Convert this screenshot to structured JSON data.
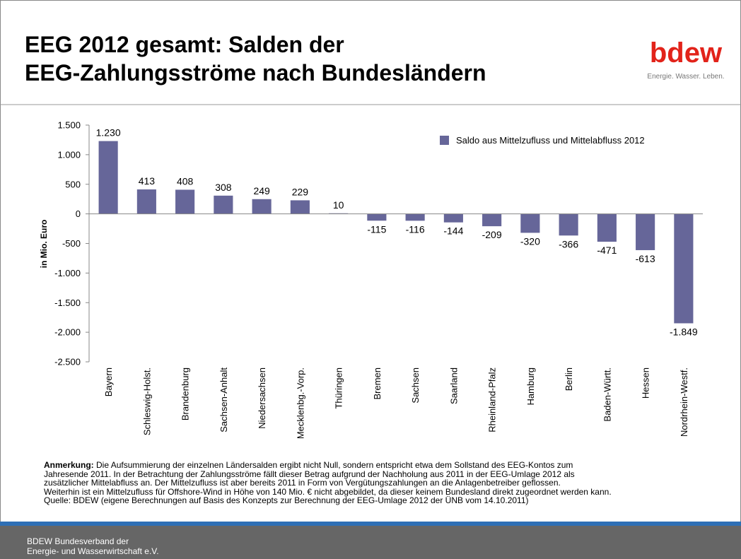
{
  "header": {
    "title": [
      "EEG 2012 gesamt: Salden der",
      "EEG-Zahlungsströme nach Bundesländern"
    ]
  },
  "logo": {
    "name": "bdew",
    "tagline": "Energie. Wasser. Leben."
  },
  "chart_data": {
    "type": "bar",
    "ylabel": "in Mio. Euro",
    "categories": [
      "Bayern",
      "Schleswig-Holst.",
      "Brandenburg",
      "Sachsen-Anhalt",
      "Niedersachsen",
      "Mecklenbg.-Vorp.",
      "Thüringen",
      "Bremen",
      "Sachsen",
      "Saarland",
      "Rheinland-Pfalz",
      "Hamburg",
      "Berlin",
      "Baden-Württ.",
      "Hessen",
      "Nordrhein-Westf."
    ],
    "series": [
      {
        "name": "Saldo aus Mittelzufluss und Mittelabfluss 2012",
        "color": "#666699",
        "values": [
          1230,
          413,
          408,
          308,
          249,
          229,
          10,
          -115,
          -116,
          -144,
          -209,
          -320,
          -366,
          -471,
          -613,
          -1849
        ],
        "value_labels": [
          "1.230",
          "413",
          "408",
          "308",
          "249",
          "229",
          "10",
          "-115",
          "-116",
          "-144",
          "-209",
          "-320",
          "-366",
          "-471",
          "-613",
          "-1.849"
        ]
      }
    ],
    "ylim": [
      -2500,
      1500
    ],
    "yticks": [
      {
        "value": -2500,
        "label": "-2.500"
      },
      {
        "value": -2000,
        "label": "-2.000"
      },
      {
        "value": -1500,
        "label": "-1.500"
      },
      {
        "value": -1000,
        "label": "-1.000"
      },
      -500,
      0,
      500,
      {
        "value": 1000,
        "label": "1.000"
      },
      {
        "value": 1500,
        "label": "1.500"
      }
    ],
    "grid": false,
    "legend": "top-right"
  },
  "note": {
    "label": "Anmerkung:",
    "lines": [
      "Die Aufsummierung der einzelnen Ländersalden ergibt nicht Null, sondern entspricht etwa dem Sollstand des EEG-Kontos zum",
      "Jahresende 2011. In der Betrachtung der Zahlungsströme fällt dieser Betrag aufgrund der Nachholung aus 2011 in der EEG-Umlage 2012 als",
      "zusätzlicher Mittelabfluss an. Der Mittelzufluss ist aber bereits 2011 in Form von Vergütungszahlungen an die Anlagenbetreiber geflossen.",
      "Weiterhin ist ein Mittelzufluss für Offshore-Wind in Höhe von 140 Mio. € nicht abgebildet, da dieser keinem Bundesland direkt zugeordnet werden kann.",
      "Quelle: BDEW (eigene Berechnungen auf Basis des Konzepts zur Berechnung der EEG-Umlage 2012 der ÜNB vom 14.10.2011)"
    ]
  },
  "footer": {
    "lines": [
      "BDEW Bundesverband der",
      "Energie- und Wasserwirtschaft e.V."
    ]
  }
}
